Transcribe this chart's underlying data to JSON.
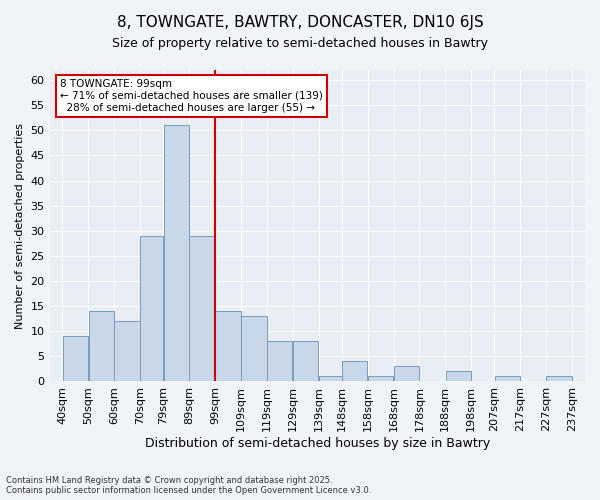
{
  "title": "8, TOWNGATE, BAWTRY, DONCASTER, DN10 6JS",
  "subtitle": "Size of property relative to semi-detached houses in Bawtry",
  "xlabel": "Distribution of semi-detached houses by size in Bawtry",
  "ylabel": "Number of semi-detached properties",
  "footnote": "Contains HM Land Registry data © Crown copyright and database right 2025.\nContains public sector information licensed under the Open Government Licence v3.0.",
  "property_size": 99,
  "property_label": "8 TOWNGATE: 99sqm",
  "pct_smaller": 71,
  "count_smaller": 139,
  "pct_larger": 28,
  "count_larger": 55,
  "bar_color": "#c8d8e8",
  "bar_edge_color": "#7a9abf",
  "marker_color": "#cc0000",
  "background_color": "#e8eef4",
  "annotation_box_color": "#cc0000",
  "bins": [
    40,
    50,
    60,
    70,
    79,
    89,
    99,
    109,
    119,
    129,
    139,
    148,
    158,
    168,
    178,
    188,
    198,
    207,
    217,
    227,
    237
  ],
  "bin_labels": [
    "40sqm",
    "50sqm",
    "60sqm",
    "70sqm",
    "79sqm",
    "89sqm",
    "99sqm",
    "109sqm",
    "119sqm",
    "129sqm",
    "139sqm",
    "148sqm",
    "158sqm",
    "168sqm",
    "178sqm",
    "188sqm",
    "198sqm",
    "207sqm",
    "217sqm",
    "227sqm",
    "237sqm"
  ],
  "counts": [
    9,
    14,
    12,
    29,
    51,
    29,
    14,
    13,
    8,
    8,
    1,
    4,
    1,
    3,
    0,
    2,
    0,
    1,
    0,
    1
  ],
  "ylim": [
    0,
    62
  ],
  "yticks": [
    0,
    5,
    10,
    15,
    20,
    25,
    30,
    35,
    40,
    45,
    50,
    55,
    60
  ]
}
